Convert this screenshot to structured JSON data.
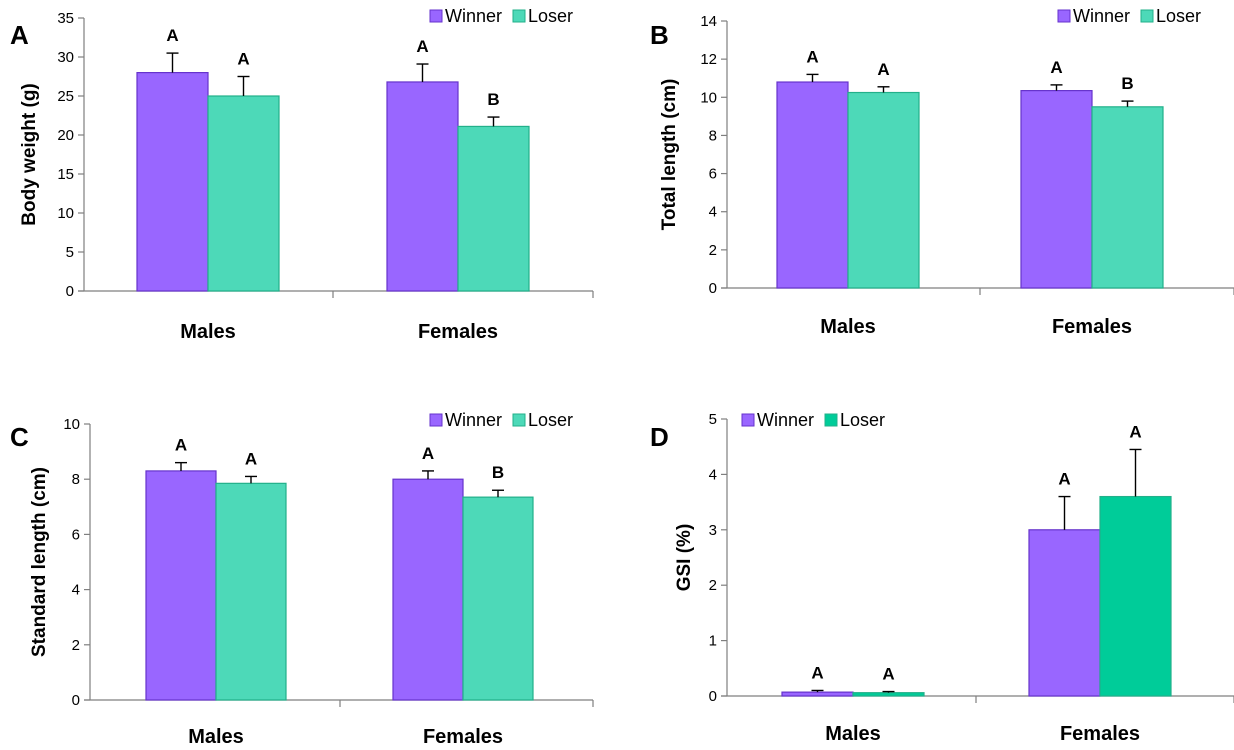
{
  "chart_data": [
    {
      "panel": "A",
      "type": "bar",
      "categories": [
        "Males",
        "Females"
      ],
      "series": [
        {
          "name": "Winner",
          "values": [
            28.0,
            26.8
          ],
          "errors": [
            2.5,
            2.3
          ],
          "sig": [
            "A",
            "A"
          ],
          "color": "#9966ff"
        },
        {
          "name": "Loser",
          "values": [
            25.0,
            21.1
          ],
          "errors": [
            2.5,
            1.2
          ],
          "sig": [
            "A",
            "B"
          ],
          "color": "#4dd9b8"
        }
      ],
      "ylabel": "Body weight (g)",
      "ylim": [
        0,
        35
      ],
      "yticks": [
        0,
        5,
        10,
        15,
        20,
        25,
        30,
        35
      ],
      "legend": "top-right",
      "grid": false
    },
    {
      "panel": "B",
      "type": "bar",
      "categories": [
        "Males",
        "Females"
      ],
      "series": [
        {
          "name": "Winner",
          "values": [
            10.8,
            10.35
          ],
          "errors": [
            0.4,
            0.3
          ],
          "sig": [
            "A",
            "A"
          ],
          "color": "#9966ff"
        },
        {
          "name": "Loser",
          "values": [
            10.25,
            9.5
          ],
          "errors": [
            0.3,
            0.3
          ],
          "sig": [
            "A",
            "B"
          ],
          "color": "#4dd9b8"
        }
      ],
      "ylabel": "Total length (cm)",
      "ylim": [
        0,
        14
      ],
      "yticks": [
        0,
        2,
        4,
        6,
        8,
        10,
        12,
        14
      ],
      "legend": "top-right",
      "grid": false
    },
    {
      "panel": "C",
      "type": "bar",
      "categories": [
        "Males",
        "Females"
      ],
      "series": [
        {
          "name": "Winner",
          "values": [
            8.3,
            8.0
          ],
          "errors": [
            0.3,
            0.3
          ],
          "sig": [
            "A",
            "A"
          ],
          "color": "#9966ff"
        },
        {
          "name": "Loser",
          "values": [
            7.85,
            7.35
          ],
          "errors": [
            0.25,
            0.25
          ],
          "sig": [
            "A",
            "B"
          ],
          "color": "#4dd9b8"
        }
      ],
      "ylabel": "Standard length (cm)",
      "ylim": [
        0,
        10
      ],
      "yticks": [
        0,
        2,
        4,
        6,
        8,
        10
      ],
      "legend": "top-right",
      "grid": false
    },
    {
      "panel": "D",
      "type": "bar",
      "categories": [
        "Males",
        "Females"
      ],
      "series": [
        {
          "name": "Winner",
          "values": [
            0.07,
            3.0
          ],
          "errors": [
            0.03,
            0.6
          ],
          "sig": [
            "A",
            "A"
          ],
          "color": "#9966ff"
        },
        {
          "name": "Loser",
          "values": [
            0.06,
            3.6
          ],
          "errors": [
            0.02,
            0.85
          ],
          "sig": [
            "A",
            "A"
          ],
          "color": "#00cc99"
        }
      ],
      "ylabel": "GSI (%)",
      "ylim": [
        0,
        5
      ],
      "yticks": [
        0,
        1,
        2,
        3,
        4,
        5
      ],
      "legend": "top-left",
      "grid": false
    }
  ]
}
